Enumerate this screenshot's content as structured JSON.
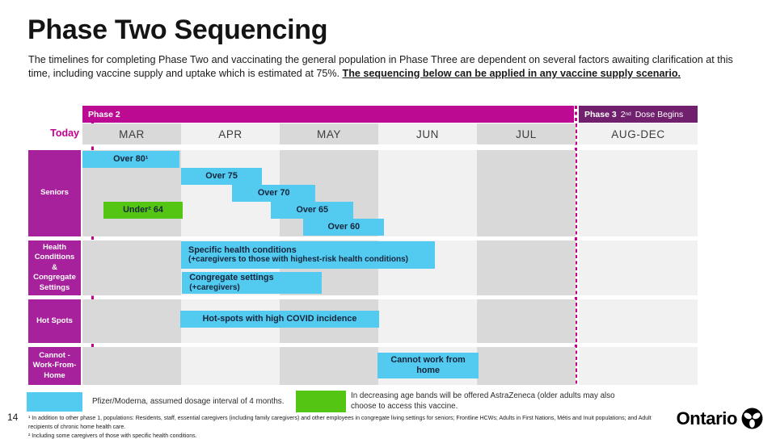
{
  "page": {
    "number": "14"
  },
  "title": "Phase Two Sequencing",
  "intro": {
    "text": "The timelines for completing Phase Two and vaccinating the general population in Phase Three are dependent on several factors awaiting clarification at this time, including vaccine supply and uptake which is estimated at 75%. ",
    "emphasis": "The sequencing below can be applied in any vaccine supply scenario."
  },
  "timeline": {
    "today_label": "Today",
    "phase2_label": "Phase 2",
    "phase3": {
      "bold": "Phase 3",
      "num": "2",
      "sup": "nd",
      "rest": " Dose Begins"
    }
  },
  "colors": {
    "phase2_band": "#BC0A92",
    "phase3_band": "#70206C",
    "row_label": "#A7219C",
    "today": "#C4008F",
    "bar_blue": "#53CAEF",
    "bar_green": "#55C514",
    "column_dark": "#D9D9D9",
    "column_light": "#F1F1F1",
    "bar_text": "#14253C"
  },
  "chart_data": {
    "type": "gantt",
    "title": "Phase Two Sequencing",
    "columns": [
      "MAR",
      "APR",
      "MAY",
      "JUN",
      "JUL",
      "AUG-DEC"
    ],
    "column_shades": [
      "dark",
      "light",
      "dark",
      "light",
      "dark",
      "light"
    ],
    "phase2_span": "MAR-JUL",
    "phase3_span": "AUG-DEC",
    "today_marker_month": 0.1,
    "rows": [
      {
        "id": "seniors",
        "label": "Seniors",
        "bars": [
          {
            "label": "Over 80¹",
            "start": 0,
            "end": 0.98,
            "lane": 0,
            "color": "blue"
          },
          {
            "label": "Over 75",
            "start": 1.0,
            "end": 1.82,
            "lane": 1,
            "color": "blue"
          },
          {
            "label": "Over 70",
            "start": 1.52,
            "end": 2.36,
            "lane": 2,
            "color": "blue"
          },
          {
            "label": "Under² 64",
            "start": 0.21,
            "end": 1.02,
            "lane": 3,
            "color": "green"
          },
          {
            "label": "Over 65",
            "start": 1.91,
            "end": 2.75,
            "lane": 3,
            "color": "blue"
          },
          {
            "label": "Over 60",
            "start": 2.24,
            "end": 3.06,
            "lane": 4,
            "color": "blue"
          }
        ]
      },
      {
        "id": "health",
        "label": "Health Conditions & Congregate Settings",
        "bars": [
          {
            "label": "Specific health conditions",
            "sublabel": "(+caregivers to those with highest-risk health conditions)",
            "start": 1.0,
            "end": 3.57,
            "lane": 0,
            "color": "blue",
            "align": "left"
          },
          {
            "label": "Congregate settings",
            "sublabel": "(+caregivers)",
            "start": 1.01,
            "end": 2.43,
            "lane": 1,
            "color": "blue",
            "align": "left"
          }
        ]
      },
      {
        "id": "hotspots",
        "label": "Hot Spots",
        "bars": [
          {
            "label": "Hot-spots with high COVID incidence",
            "start": 0.99,
            "end": 3.01,
            "lane": 0,
            "color": "blue"
          }
        ]
      },
      {
        "id": "cwfh",
        "label": "Cannot - Work-From- Home",
        "bars": [
          {
            "label": "Cannot work from home",
            "start": 2.99,
            "end": 4.02,
            "lane": 0,
            "color": "blue"
          }
        ]
      }
    ],
    "legend_position": "bottom"
  },
  "legend": {
    "pfizer": "Pfizer/Moderna, assumed dosage interval of 4 months.",
    "astrazeneca": "In decreasing age bands will be offered AstraZeneca (older adults may also choose to access this vaccine."
  },
  "footnotes": [
    "¹ In addition to other phase 1, populations: Residents, staff, essential caregivers (including family caregivers) and other employees in congregate living settings for seniors; Frontline HCWs; Adults in First Nations, Métis and Inuit populations; and Adult recipients of chronic home health care.",
    "² Including some caregivers of those with specific health conditions."
  ],
  "logo": {
    "text": "Ontario"
  }
}
